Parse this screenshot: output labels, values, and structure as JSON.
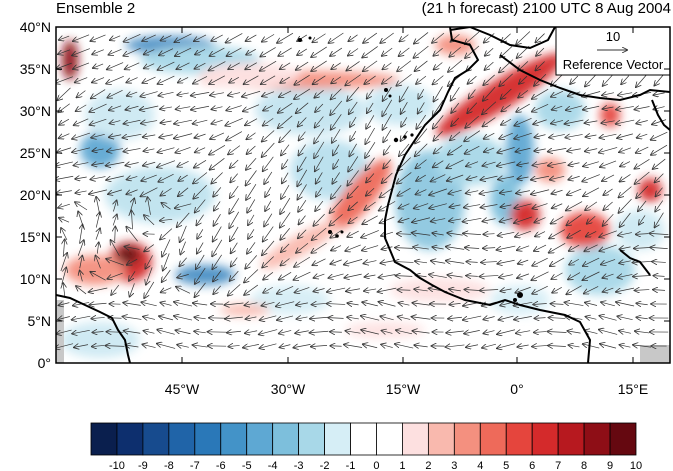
{
  "header": {
    "left_title": "Ensemble 2",
    "right_title": "(21 h forecast) 2100 UTC 8 Aug 2004"
  },
  "map": {
    "lat_labels": [
      "40°N",
      "35°N",
      "30°N",
      "25°N",
      "20°N",
      "15°N",
      "10°N",
      "5°N",
      "0°"
    ],
    "lon_labels": [
      "45°W",
      "30°W",
      "15°W",
      "0°",
      "15°E"
    ],
    "reference_vector": {
      "value": "10",
      "label": "Reference Vector"
    }
  },
  "colorbar": {
    "labels": [
      "-10",
      "-9",
      "-8",
      "-7",
      "-6",
      "-5",
      "-4",
      "-3",
      "-2",
      "-1",
      "0",
      "1",
      "2",
      "3",
      "4",
      "5",
      "6",
      "7",
      "8",
      "9",
      "10"
    ],
    "colors": [
      "#0a1f4e",
      "#0d2f6e",
      "#174b8e",
      "#2064a8",
      "#2a78b8",
      "#4393c8",
      "#5ea8d3",
      "#7dbfdc",
      "#a8d8e8",
      "#d6eef6",
      "#ffffff",
      "#ffffff",
      "#fde0e0",
      "#f9b9ae",
      "#f4907f",
      "#ee6a5a",
      "#e5453d",
      "#d42a2b",
      "#b7191f",
      "#8e0e16",
      "#650810"
    ]
  }
}
